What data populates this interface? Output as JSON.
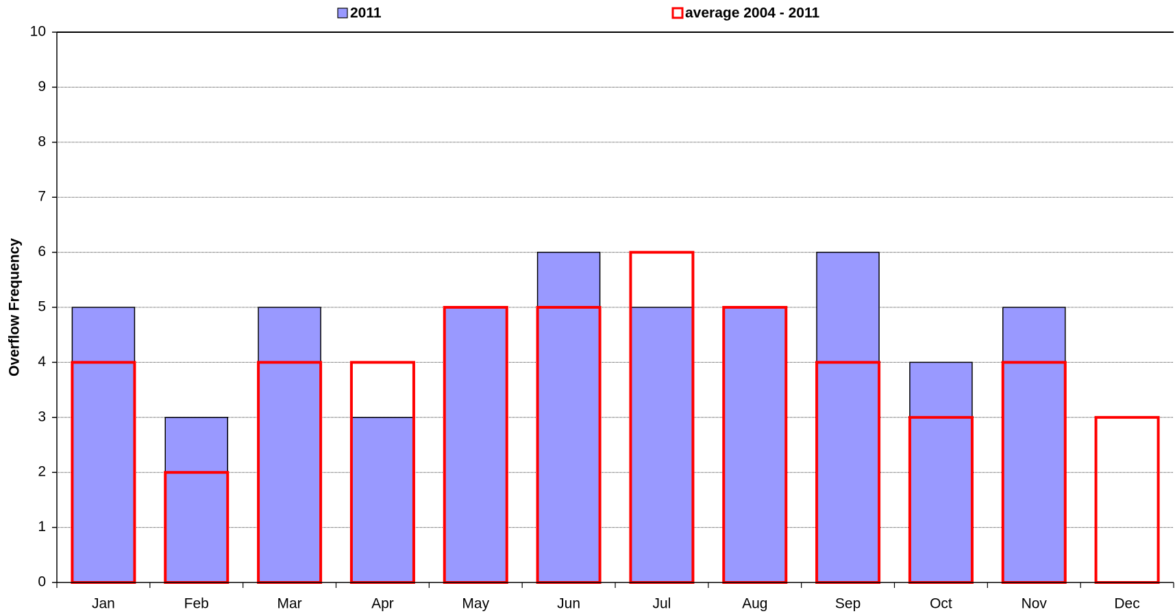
{
  "chart_data": {
    "type": "bar",
    "overlap": true,
    "y_label": "Overflow Frequency",
    "categories": [
      "Jan",
      "Feb",
      "Mar",
      "Apr",
      "May",
      "Jun",
      "Jul",
      "Aug",
      "Sep",
      "Oct",
      "Nov",
      "Dec"
    ],
    "series": [
      {
        "name": "2011",
        "color": "#9999ff",
        "style": "filled",
        "values": [
          5,
          3,
          5,
          3,
          5,
          6,
          5,
          5,
          6,
          4,
          5,
          0
        ]
      },
      {
        "name": "average 2004 - 2011",
        "color": "#ff0000",
        "style": "outline",
        "values": [
          4,
          2,
          4,
          4,
          5,
          5,
          6,
          5,
          4,
          3,
          4,
          3
        ]
      }
    ],
    "ylim": [
      0,
      10
    ],
    "yticks": [
      0,
      1,
      2,
      3,
      4,
      5,
      6,
      7,
      8,
      9,
      10
    ],
    "grid": true,
    "legend": "top"
  }
}
